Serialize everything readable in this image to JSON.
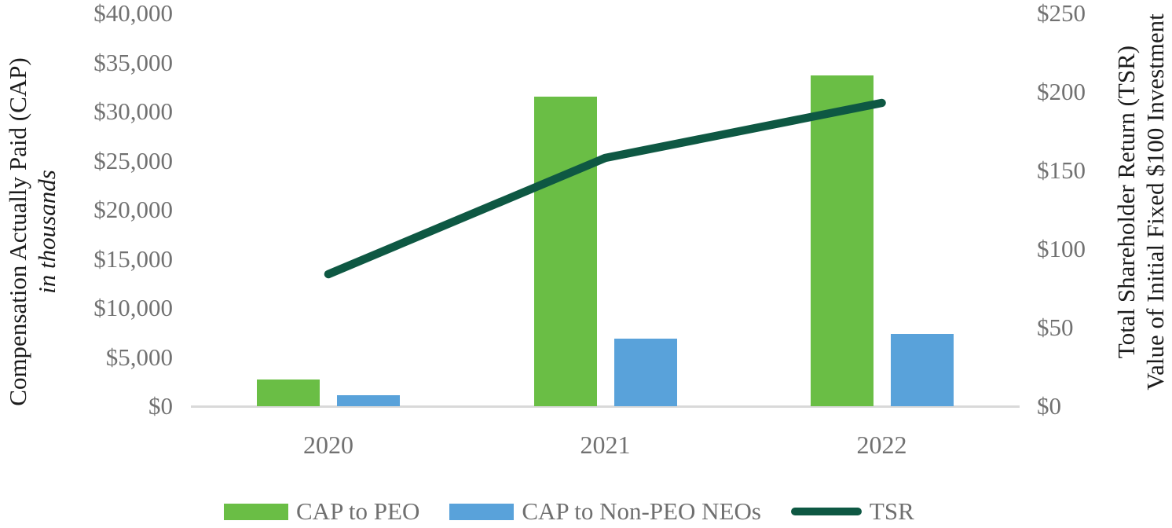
{
  "chart_data": {
    "type": "combo-bar-line",
    "title": "",
    "categories": [
      "2020",
      "2021",
      "2022"
    ],
    "series": [
      {
        "name": "CAP to PEO",
        "type": "bar",
        "axis": "left",
        "color": "#6ABE45",
        "values": [
          2700,
          31500,
          33700
        ]
      },
      {
        "name": "CAP to Non-PEO NEOs",
        "type": "bar",
        "axis": "left",
        "color": "#59A2DA",
        "values": [
          1100,
          6900,
          7400
        ]
      },
      {
        "name": "TSR",
        "type": "line",
        "axis": "right",
        "color": "#0E5843",
        "values": [
          84,
          158,
          193
        ]
      }
    ],
    "left_axis": {
      "title_line1": "Compensation Actually Paid (CAP)",
      "title_line2": "in thousands",
      "min": 0,
      "max": 40000,
      "ticks": [
        {
          "label": "$40,000",
          "value": 40000
        },
        {
          "label": "$35,000",
          "value": 35000
        },
        {
          "label": "$30,000",
          "value": 30000
        },
        {
          "label": "$25,000",
          "value": 25000
        },
        {
          "label": "$20,000",
          "value": 20000
        },
        {
          "label": "$15,000",
          "value": 15000
        },
        {
          "label": "$10,000",
          "value": 10000
        },
        {
          "label": "$5,000",
          "value": 5000
        },
        {
          "label": "$0",
          "value": 0
        }
      ]
    },
    "right_axis": {
      "title_line1": "Total Shareholder Return (TSR)",
      "title_line2": "Value of Initial Fixed $100 Investment",
      "min": 0,
      "max": 250,
      "ticks": [
        {
          "label": "$250",
          "value": 250
        },
        {
          "label": "$200",
          "value": 200
        },
        {
          "label": "$150",
          "value": 150
        },
        {
          "label": "$100",
          "value": 100
        },
        {
          "label": "$50",
          "value": 50
        },
        {
          "label": "$0",
          "value": 0
        }
      ]
    },
    "legend_position": "bottom",
    "grid": "off",
    "axis_line_color": "#d9d9d9",
    "label_color": "#717171",
    "title_color": "#1c1c1c"
  }
}
